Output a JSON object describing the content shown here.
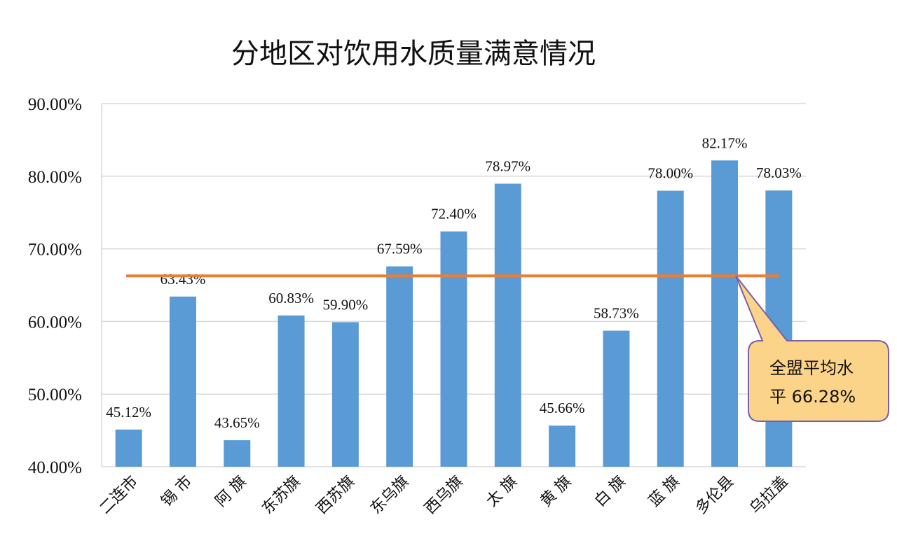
{
  "chart_data": {
    "type": "bar",
    "title": "分地区对饮用水质量满意情况",
    "categories": [
      "二连市",
      "锡 市",
      "阿 旗",
      "东苏旗",
      "西苏旗",
      "东乌旗",
      "西乌旗",
      "太 旗",
      "黄 旗",
      "白 旗",
      "蓝 旗",
      "多伦县",
      "乌拉盖"
    ],
    "values": [
      45.12,
      63.43,
      43.65,
      60.83,
      59.9,
      67.59,
      72.4,
      78.97,
      45.66,
      58.73,
      78.0,
      82.17,
      78.03
    ],
    "value_labels": [
      "45.12%",
      "63.43%",
      "43.65%",
      "60.83%",
      "59.90%",
      "67.59%",
      "72.40%",
      "78.97%",
      "45.66%",
      "58.73%",
      "78.00%",
      "82.17%",
      "78.03%"
    ],
    "ylim": [
      40,
      90
    ],
    "yticks": [
      40,
      50,
      60,
      70,
      80,
      90
    ],
    "ytick_labels": [
      "40.00%",
      "50.00%",
      "60.00%",
      "70.00%",
      "80.00%",
      "90.00%"
    ],
    "grid": true,
    "reference_line": {
      "value": 66.28
    },
    "callout": {
      "lines": [
        "全盟平均水",
        "平 66.28%"
      ]
    },
    "colors": {
      "bar": "#5b9bd5",
      "reference_line": "#ed7d31",
      "callout_fill": "#fbd48a",
      "callout_stroke": "#7b5ea7",
      "grid": "#d9d9d9"
    }
  }
}
